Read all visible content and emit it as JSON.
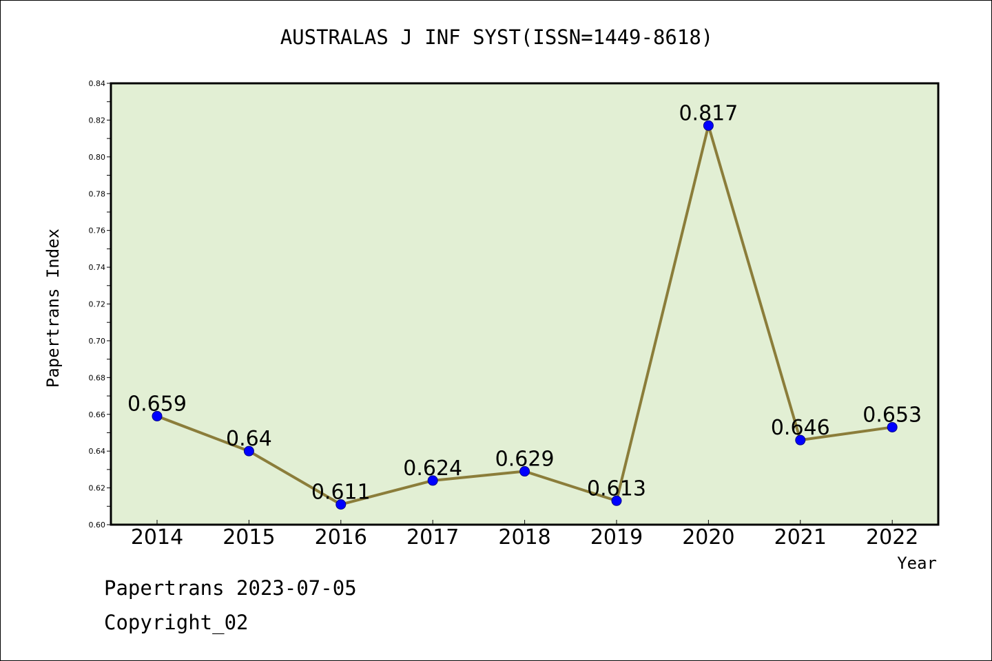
{
  "chart_data": {
    "type": "line",
    "title": "AUSTRALAS J INF SYST(ISSN=1449-8618)",
    "xlabel": "Year",
    "ylabel": "Papertrans Index",
    "categories": [
      "2014",
      "2015",
      "2016",
      "2017",
      "2018",
      "2019",
      "2020",
      "2021",
      "2022"
    ],
    "series": [
      {
        "values": [
          0.659,
          0.64,
          0.611,
          0.624,
          0.629,
          0.613,
          0.817,
          0.646,
          0.653
        ],
        "data_labels": [
          "0.659",
          "0.64",
          "0.611",
          "0.624",
          "0.629",
          "0.613",
          "0.817",
          "0.646",
          "0.653"
        ]
      }
    ],
    "ylim": [
      0.6,
      0.84
    ],
    "yticks": [
      "0.60",
      "0.62",
      "0.64",
      "0.66",
      "0.68",
      "0.70",
      "0.72",
      "0.74",
      "0.76",
      "0.78",
      "0.80",
      "0.82",
      "0.84"
    ],
    "grid": false,
    "legend": "none",
    "colors": {
      "plot_background": "#e2efd4",
      "line": "#8b7d3a",
      "marker": "#0000ff",
      "frame": "#000000"
    }
  },
  "footer": {
    "date_text": "Papertrans 2023-07-05",
    "copyright_text": "Copyright_02"
  }
}
